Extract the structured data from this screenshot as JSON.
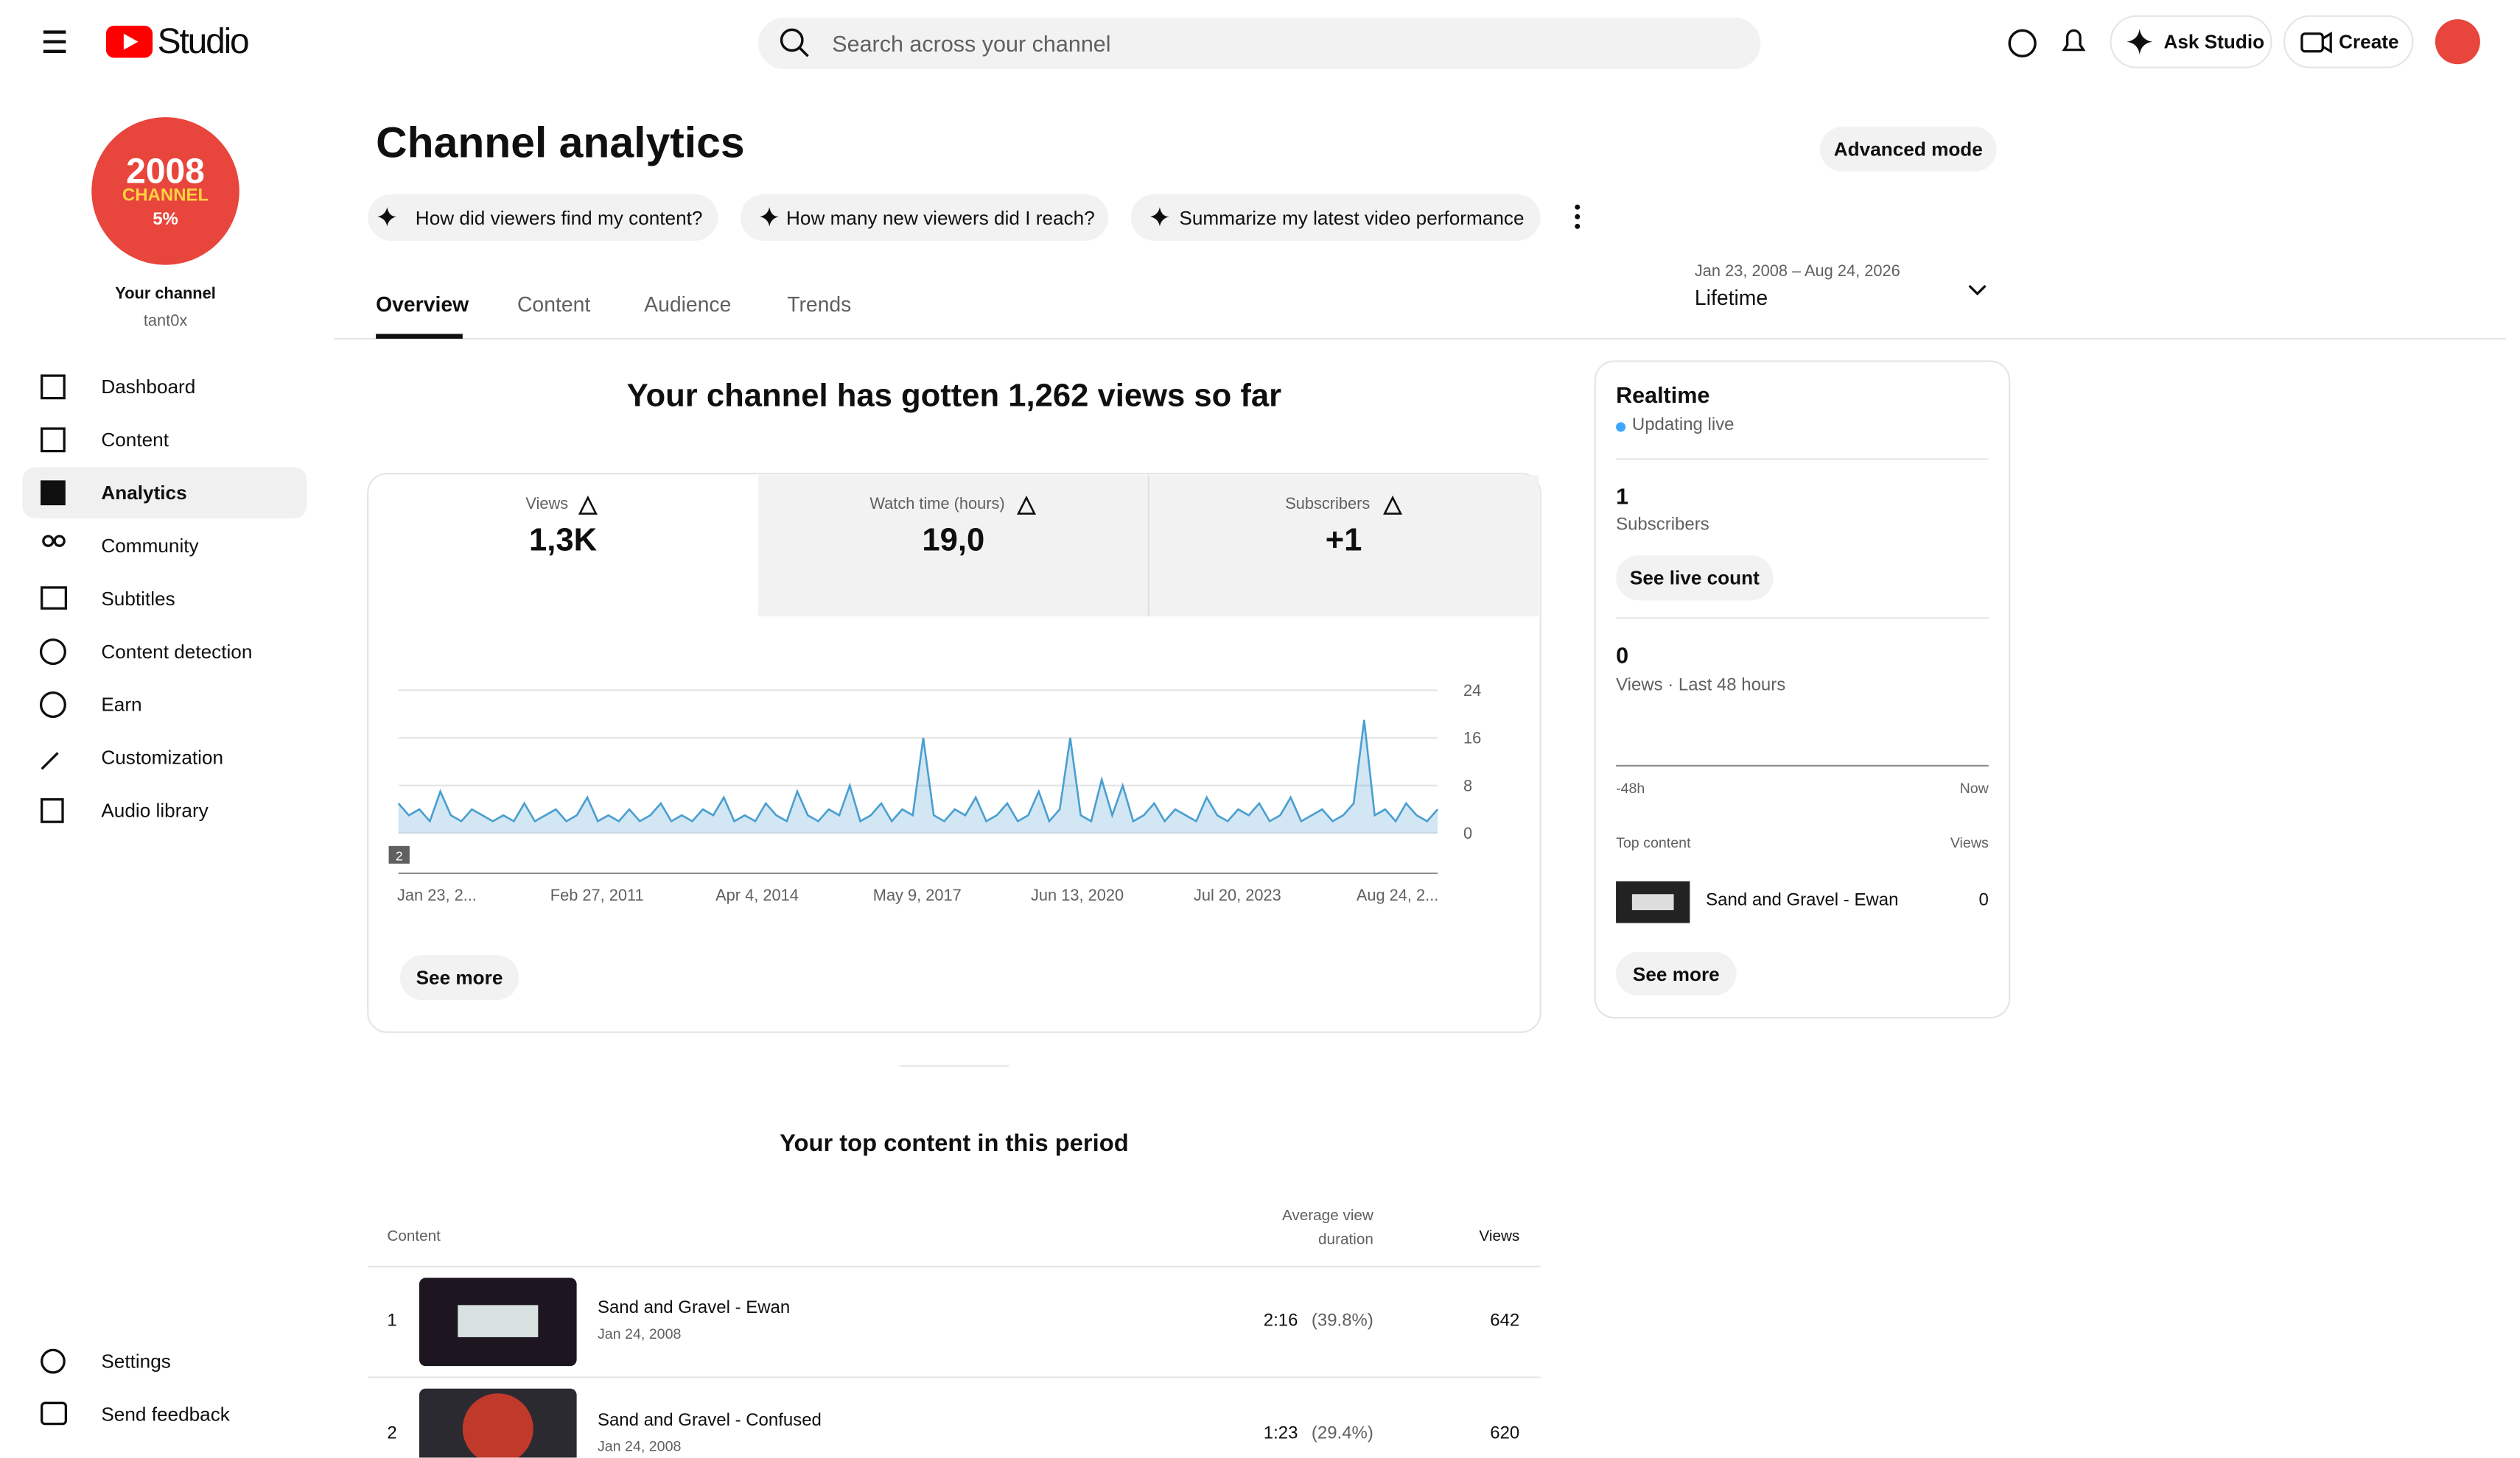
{
  "header": {
    "logo": "Studio",
    "search_placeholder": "Search across your channel",
    "ask": "Ask Studio",
    "create": "Create"
  },
  "sidebar": {
    "avatar": {
      "year": "2008",
      "word": "CHANNEL",
      "badge": "5%"
    },
    "channel_label": "Your channel",
    "handle": "tant0x",
    "nav": [
      "Dashboard",
      "Content",
      "Analytics",
      "Community",
      "Subtitles",
      "Content detection",
      "Earn",
      "Customization",
      "Audio library"
    ],
    "bottom": [
      "Settings",
      "Send feedback"
    ]
  },
  "page": {
    "title": "Channel analytics",
    "advanced": "Advanced mode",
    "prompts": [
      "How did viewers find my content?",
      "How many new viewers did I reach?",
      "Summarize my latest video performance"
    ],
    "tabs": [
      "Overview",
      "Content",
      "Audience",
      "Trends"
    ],
    "date_range": "Jan 23, 2008 – Aug 24, 2026",
    "period": "Lifetime"
  },
  "overview": {
    "headline": "Your channel has gotten 1,262 views so far",
    "metrics": [
      {
        "label": "Views",
        "value": "1,3K"
      },
      {
        "label": "Watch time (hours)",
        "value": "19,0"
      },
      {
        "label": "Subscribers",
        "value": "+1"
      }
    ],
    "chart": {
      "type": "line",
      "color": "#4a9fd0",
      "ylim": [
        0,
        24
      ],
      "yticks": [
        0,
        8,
        16,
        24
      ],
      "marker": "2",
      "x_labels": [
        "Jan 23, 2...",
        "Feb 27, 2011",
        "Apr 4, 2014",
        "May 9, 2017",
        "Jun 13, 2020",
        "Jul 20, 2023",
        "Aug 24, 2..."
      ],
      "values": [
        5,
        3,
        4,
        2,
        7,
        3,
        2,
        4,
        3,
        2,
        3,
        2,
        5,
        2,
        3,
        4,
        2,
        3,
        6,
        2,
        3,
        2,
        4,
        2,
        3,
        5,
        2,
        3,
        2,
        4,
        3,
        6,
        2,
        3,
        2,
        5,
        3,
        2,
        7,
        3,
        2,
        4,
        3,
        8,
        2,
        3,
        5,
        2,
        4,
        3,
        16,
        3,
        2,
        4,
        3,
        6,
        2,
        3,
        5,
        2,
        3,
        7,
        2,
        4,
        16,
        3,
        2,
        9,
        3,
        8,
        2,
        3,
        5,
        2,
        4,
        3,
        2,
        6,
        3,
        2,
        4,
        3,
        5,
        2,
        3,
        6,
        2,
        3,
        4,
        2,
        3,
        5,
        19,
        3,
        4,
        2,
        5,
        3,
        2,
        4
      ]
    },
    "see_more": "See more"
  },
  "realtime": {
    "title": "Realtime",
    "status": "Updating live",
    "subscribers": 1,
    "subscribers_label": "Subscribers",
    "live_count": "See live count",
    "views": 0,
    "views_label": "Views · Last 48 hours",
    "axis_start": "-48h",
    "axis_end": "Now",
    "top_label": "Top content",
    "views_header": "Views",
    "top_item": {
      "title": "Sand and Gravel - Ewan",
      "views": 0
    },
    "see_more": "See more"
  },
  "top_content": {
    "title": "Your top content in this period",
    "headers": [
      "Content",
      "Average view duration",
      "Views"
    ],
    "rows": [
      {
        "rank": 1,
        "title": "Sand and Gravel - Ewan",
        "date": "Jan 24, 2008",
        "duration": "2:16",
        "percent": "(39.8%)",
        "views": 642
      },
      {
        "rank": 2,
        "title": "Sand and Gravel - Confused",
        "date": "Jan 24, 2008",
        "duration": "1:23",
        "percent": "(29.4%)",
        "views": 620
      }
    ]
  }
}
